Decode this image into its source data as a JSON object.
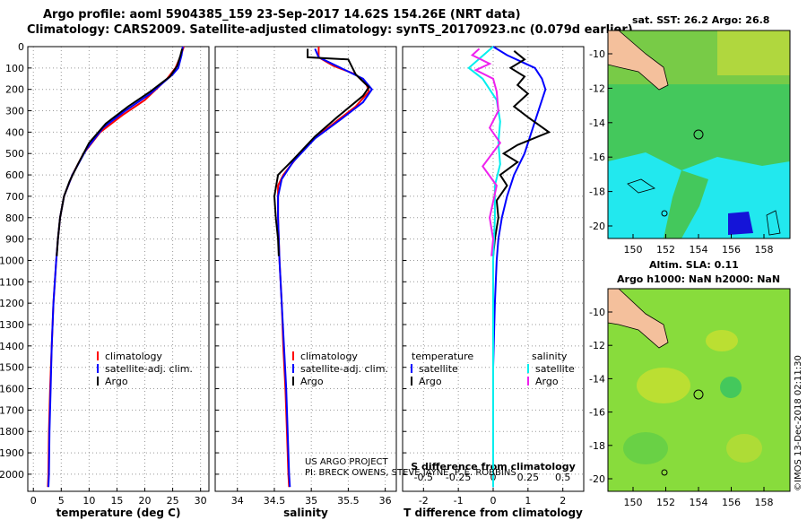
{
  "header": {
    "line1": "Argo profile: aoml 5904385_159 23-Sep-2017 14.62S 154.26E (NRT data)",
    "line2": "Climatology: CARS2009. Satellite-adjusted climatology: synTS_20170923.nc (0.079d earlier)"
  },
  "right_panel": {
    "sst_title": "sat. SST: 26.2 Argo: 26.8",
    "altim_title": "Altim. SLA: 0.11",
    "argo_h_title": "Argo h1000: NaN h2000: NaN",
    "copyright": "©IMOS 13-Dec-2018 02:11:30",
    "lat_ticks": [
      "-10",
      "-12",
      "-14",
      "-16",
      "-18",
      "-20"
    ],
    "lon_ticks": [
      "150",
      "152",
      "154",
      "156",
      "158"
    ],
    "colors": {
      "sst_bg": "#44c85c",
      "sla_bg": "#88dc3c",
      "land": "#f4c09c",
      "cool": "#22e8ee",
      "deep": "#1414d8"
    }
  },
  "credits": {
    "line1": "US ARGO PROJECT",
    "line2": "PI: BRECK OWENS, STEVE JAYNE, P. E. ROBBINS"
  },
  "chart_data": [
    {
      "type": "line",
      "id": "temperature",
      "xlabel": "temperature (deg C)",
      "ylabel": "",
      "xlim": [
        -1,
        31.5
      ],
      "ylim": [
        2080,
        0
      ],
      "xticks": [
        0,
        5,
        10,
        15,
        20,
        25,
        30
      ],
      "yticks": [
        0,
        100,
        200,
        300,
        400,
        500,
        600,
        700,
        800,
        900,
        1000,
        1100,
        1200,
        1300,
        1400,
        1500,
        1600,
        1700,
        1800,
        1900,
        2000
      ],
      "legend": [
        "climatology",
        "satellite-adj. clim.",
        "Argo"
      ],
      "legend_position": "lower-middle",
      "series": [
        {
          "name": "climatology",
          "color": "#ff0000",
          "points": [
            [
              27,
              0
            ],
            [
              26.5,
              40
            ],
            [
              25.5,
              100
            ],
            [
              24,
              150
            ],
            [
              20,
              250
            ],
            [
              16,
              320
            ],
            [
              12,
              400
            ],
            [
              9,
              500
            ],
            [
              7,
              600
            ],
            [
              5.5,
              700
            ],
            [
              4.8,
              800
            ],
            [
              4.4,
              900
            ],
            [
              4.1,
              1000
            ],
            [
              3.6,
              1200
            ],
            [
              3.3,
              1400
            ],
            [
              3,
              1600
            ],
            [
              2.8,
              1800
            ],
            [
              2.7,
              2000
            ],
            [
              2.6,
              2060
            ]
          ]
        },
        {
          "name": "satellite-adj. clim.",
          "color": "#0000ff",
          "points": [
            [
              26.8,
              0
            ],
            [
              26.6,
              40
            ],
            [
              26,
              100
            ],
            [
              25,
              130
            ],
            [
              21,
              220
            ],
            [
              16.5,
              300
            ],
            [
              12.5,
              380
            ],
            [
              9.5,
              480
            ],
            [
              7,
              600
            ],
            [
              5.5,
              700
            ],
            [
              4.8,
              800
            ],
            [
              4.4,
              900
            ],
            [
              4.1,
              1000
            ],
            [
              3.6,
              1200
            ],
            [
              3.3,
              1400
            ],
            [
              3.1,
              1600
            ],
            [
              2.9,
              1800
            ],
            [
              2.8,
              2000
            ],
            [
              2.7,
              2060
            ]
          ]
        },
        {
          "name": "Argo",
          "color": "#000000",
          "points": [
            [
              26.7,
              10
            ],
            [
              26.4,
              40
            ],
            [
              25.8,
              90
            ],
            [
              24.5,
              140
            ],
            [
              21,
              210
            ],
            [
              17,
              280
            ],
            [
              13,
              360
            ],
            [
              10,
              450
            ],
            [
              8,
              550
            ],
            [
              6.5,
              630
            ],
            [
              5.5,
              700
            ],
            [
              4.8,
              800
            ],
            [
              4.4,
              900
            ],
            [
              4.2,
              980
            ]
          ]
        }
      ]
    },
    {
      "type": "line",
      "id": "salinity",
      "xlabel": "salinity",
      "ylabel": "",
      "xlim": [
        33.7,
        36.15
      ],
      "ylim": [
        2080,
        0
      ],
      "xticks": [
        34,
        34.5,
        35,
        35.5,
        36
      ],
      "yticks": [
        0,
        100,
        200,
        300,
        400,
        500,
        600,
        700,
        800,
        900,
        1000,
        1100,
        1200,
        1300,
        1400,
        1500,
        1600,
        1700,
        1800,
        1900,
        2000
      ],
      "legend": [
        "climatology",
        "satellite-adj. clim.",
        "Argo"
      ],
      "legend_position": "lower-right",
      "series": [
        {
          "name": "climatology",
          "color": "#ff0000",
          "points": [
            [
              35.1,
              0
            ],
            [
              35.1,
              50
            ],
            [
              35.3,
              90
            ],
            [
              35.6,
              130
            ],
            [
              35.75,
              180
            ],
            [
              35.78,
              210
            ],
            [
              35.6,
              280
            ],
            [
              35.3,
              360
            ],
            [
              35,
              440
            ],
            [
              34.8,
              520
            ],
            [
              34.62,
              600
            ],
            [
              34.55,
              650
            ],
            [
              34.55,
              800
            ],
            [
              34.57,
              1000
            ],
            [
              34.6,
              1200
            ],
            [
              34.62,
              1400
            ],
            [
              34.65,
              1600
            ],
            [
              34.67,
              1800
            ],
            [
              34.69,
              2000
            ],
            [
              34.7,
              2060
            ]
          ]
        },
        {
          "name": "satellite-adj. clim.",
          "color": "#0000ff",
          "points": [
            [
              35.05,
              10
            ],
            [
              35.1,
              50
            ],
            [
              35.4,
              100
            ],
            [
              35.7,
              150
            ],
            [
              35.82,
              200
            ],
            [
              35.7,
              260
            ],
            [
              35.4,
              340
            ],
            [
              35.05,
              430
            ],
            [
              34.75,
              540
            ],
            [
              34.6,
              620
            ],
            [
              34.55,
              700
            ],
            [
              34.55,
              800
            ],
            [
              34.57,
              1000
            ],
            [
              34.6,
              1200
            ],
            [
              34.63,
              1400
            ],
            [
              34.66,
              1600
            ],
            [
              34.68,
              1800
            ],
            [
              34.7,
              2000
            ],
            [
              34.71,
              2060
            ]
          ]
        },
        {
          "name": "Argo",
          "color": "#000000",
          "points": [
            [
              34.95,
              10
            ],
            [
              34.95,
              50
            ],
            [
              35.5,
              60
            ],
            [
              35.6,
              130
            ],
            [
              35.78,
              190
            ],
            [
              35.7,
              230
            ],
            [
              35.35,
              330
            ],
            [
              35.05,
              420
            ],
            [
              34.75,
              530
            ],
            [
              34.55,
              600
            ],
            [
              34.5,
              700
            ],
            [
              34.52,
              800
            ],
            [
              34.55,
              900
            ],
            [
              34.56,
              980
            ]
          ]
        }
      ]
    },
    {
      "type": "line",
      "id": "difference",
      "xlabel": "T difference from climatology",
      "secondary_xlabel": "S difference from climatology",
      "ylabel": "",
      "xlim": [
        -2.6,
        2.6
      ],
      "ylim": [
        2080,
        0
      ],
      "xticks": [
        -2,
        -1,
        0,
        1,
        2
      ],
      "secondary_xticks": [
        "-0.5",
        "-0.25",
        "0",
        "0.25",
        "0.5"
      ],
      "yticks": [
        0,
        100,
        200,
        300,
        400,
        500,
        600,
        700,
        800,
        900,
        1000,
        1100,
        1200,
        1300,
        1400,
        1500,
        1600,
        1700,
        1800,
        1900,
        2000
      ],
      "legend_headers": [
        "temperature",
        "salinity"
      ],
      "legend": [
        "satellite",
        "Argo",
        "satellite",
        "Argo"
      ],
      "legend_position": "lower-middle",
      "series": [
        {
          "name": "T satellite",
          "color": "#0000ff",
          "points": [
            [
              0,
              0
            ],
            [
              0.4,
              40
            ],
            [
              0.8,
              70
            ],
            [
              1.2,
              100
            ],
            [
              1.4,
              150
            ],
            [
              1.5,
              200
            ],
            [
              1.3,
              300
            ],
            [
              1.1,
              400
            ],
            [
              0.9,
              500
            ],
            [
              0.6,
              600
            ],
            [
              0.4,
              700
            ],
            [
              0.25,
              800
            ],
            [
              0.15,
              900
            ],
            [
              0.1,
              1000
            ],
            [
              0.05,
              1200
            ],
            [
              0,
              1500
            ],
            [
              0,
              2060
            ]
          ]
        },
        {
          "name": "T Argo",
          "color": "#000000",
          "points": [
            [
              0.6,
              20
            ],
            [
              0.9,
              60
            ],
            [
              0.5,
              100
            ],
            [
              0.9,
              140
            ],
            [
              0.7,
              180
            ],
            [
              1,
              220
            ],
            [
              0.6,
              280
            ],
            [
              1,
              330
            ],
            [
              1.6,
              400
            ],
            [
              0.7,
              460
            ],
            [
              0.3,
              500
            ],
            [
              0.7,
              540
            ],
            [
              0.2,
              600
            ],
            [
              0.4,
              650
            ],
            [
              0.1,
              720
            ],
            [
              0.15,
              800
            ],
            [
              0.05,
              900
            ],
            [
              0,
              980
            ]
          ]
        },
        {
          "name": "S satellite",
          "color": "#00eeee",
          "points": [
            [
              0,
              0
            ],
            [
              -0.7,
              100
            ],
            [
              -0.3,
              150
            ],
            [
              0.1,
              250
            ],
            [
              0.2,
              350
            ],
            [
              0.15,
              450
            ],
            [
              0.2,
              550
            ],
            [
              0.05,
              650
            ],
            [
              0.05,
              800
            ],
            [
              0,
              1000
            ],
            [
              0,
              2060
            ]
          ]
        },
        {
          "name": "S Argo",
          "color": "#ee22ee",
          "points": [
            [
              -0.4,
              10
            ],
            [
              -0.6,
              40
            ],
            [
              -0.1,
              80
            ],
            [
              -0.5,
              110
            ],
            [
              0,
              150
            ],
            [
              0.1,
              210
            ],
            [
              0.15,
              300
            ],
            [
              -0.1,
              380
            ],
            [
              0.2,
              450
            ],
            [
              -0.3,
              560
            ],
            [
              0.1,
              650
            ],
            [
              -0.1,
              800
            ],
            [
              0,
              900
            ],
            [
              -0.05,
              980
            ]
          ]
        }
      ]
    }
  ]
}
